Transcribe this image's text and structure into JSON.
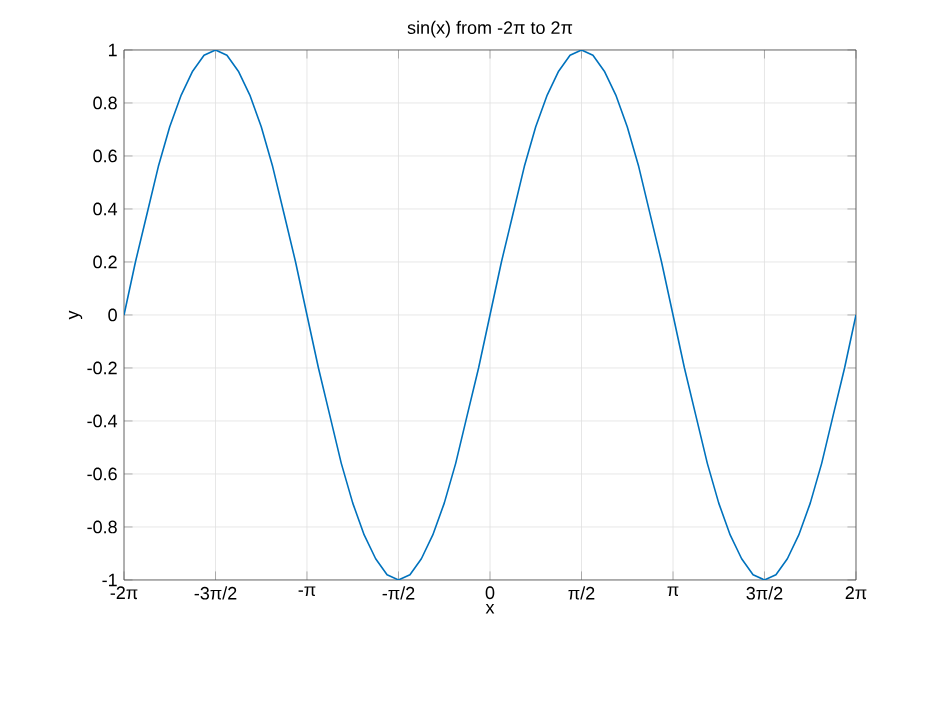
{
  "chart_data": {
    "type": "line",
    "title": "sin(x) from -2π to 2π",
    "xlabel": "x",
    "ylabel": "y",
    "xlim": [
      -6.283,
      6.283
    ],
    "ylim": [
      -1,
      1
    ],
    "xticks": [
      {
        "value": -6.283,
        "label": "-2π"
      },
      {
        "value": -4.712,
        "label": "-3π/2"
      },
      {
        "value": -3.142,
        "label": "-π"
      },
      {
        "value": -1.571,
        "label": "-π/2"
      },
      {
        "value": 0,
        "label": "0"
      },
      {
        "value": 1.571,
        "label": "π/2"
      },
      {
        "value": 3.142,
        "label": "π"
      },
      {
        "value": 4.712,
        "label": "3π/2"
      },
      {
        "value": 6.283,
        "label": "2π"
      }
    ],
    "yticks": [
      -1,
      -0.8,
      -0.6,
      -0.4,
      -0.2,
      0,
      0.2,
      0.4,
      0.6,
      0.8,
      1
    ],
    "grid": true,
    "x": [
      -6.283,
      -6.087,
      -5.89,
      -5.694,
      -5.498,
      -5.301,
      -5.105,
      -4.909,
      -4.712,
      -4.516,
      -4.32,
      -4.123,
      -3.927,
      -3.731,
      -3.534,
      -3.338,
      -3.142,
      -2.945,
      -2.749,
      -2.553,
      -2.356,
      -2.16,
      -1.963,
      -1.767,
      -1.571,
      -1.374,
      -1.178,
      -0.982,
      -0.785,
      -0.589,
      -0.393,
      -0.196,
      0,
      0.196,
      0.393,
      0.589,
      0.785,
      0.982,
      1.178,
      1.374,
      1.571,
      1.767,
      1.963,
      2.16,
      2.356,
      2.553,
      2.749,
      2.945,
      3.142,
      3.338,
      3.534,
      3.731,
      3.927,
      4.123,
      4.32,
      4.516,
      4.712,
      4.909,
      5.105,
      5.301,
      5.498,
      5.694,
      5.89,
      6.087,
      6.283
    ],
    "series": [
      {
        "color": "#0072bd",
        "values": [
          0,
          0.2,
          0.38,
          0.56,
          0.71,
          0.83,
          0.92,
          0.98,
          1,
          0.98,
          0.92,
          0.83,
          0.71,
          0.56,
          0.38,
          0.2,
          0,
          -0.2,
          -0.38,
          -0.56,
          -0.71,
          -0.83,
          -0.92,
          -0.98,
          -1,
          -0.98,
          -0.92,
          -0.83,
          -0.71,
          -0.56,
          -0.38,
          -0.2,
          0,
          0.2,
          0.38,
          0.56,
          0.71,
          0.83,
          0.92,
          0.98,
          1,
          0.98,
          0.92,
          0.83,
          0.71,
          0.56,
          0.38,
          0.2,
          0,
          -0.2,
          -0.38,
          -0.56,
          -0.71,
          -0.83,
          -0.92,
          -0.98,
          -1,
          -0.98,
          -0.92,
          -0.83,
          -0.71,
          -0.56,
          -0.38,
          -0.2,
          0
        ]
      }
    ]
  }
}
